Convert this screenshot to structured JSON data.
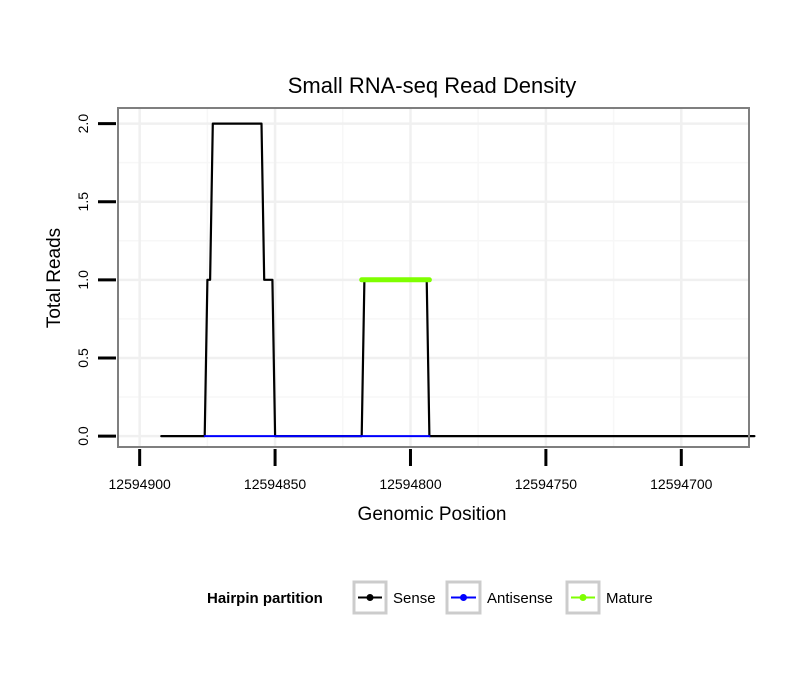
{
  "chart_data": {
    "type": "line",
    "title": "Small RNA-seq Read Density",
    "xlabel": "Genomic Position",
    "ylabel": "Total Reads",
    "xlim": [
      12594908,
      12594675
    ],
    "x_reversed": true,
    "ylim": [
      -0.07,
      2.1
    ],
    "xticks": [
      12594900,
      12594850,
      12594800,
      12594750,
      12594700
    ],
    "xtick_labels": [
      "12594900",
      "12594850",
      "12594800",
      "12594750",
      "12594700"
    ],
    "yticks": [
      0.0,
      0.5,
      1.0,
      1.5,
      2.0
    ],
    "ytick_labels": [
      "0.0",
      "0.5",
      "1.0",
      "1.5",
      "2.0"
    ],
    "grid": true,
    "legend": {
      "title": "Hairpin partition",
      "position": "bottom",
      "entries": [
        "Sense",
        "Antisense",
        "Mature"
      ]
    },
    "series": [
      {
        "name": "Sense",
        "color": "#000000",
        "x": [
          12594892,
          12594876,
          12594875,
          12594874,
          12594873,
          12594855,
          12594854,
          12594851,
          12594850,
          12594818,
          12594817,
          12594794,
          12594793,
          12594673
        ],
        "y": [
          0,
          0,
          1,
          1,
          2,
          2,
          1,
          1,
          0,
          0,
          1,
          1,
          0,
          0
        ]
      },
      {
        "name": "Antisense",
        "color": "#0000ff",
        "x": [
          12594876,
          12594850,
          12594818,
          12594793
        ],
        "y": [
          0,
          0,
          0,
          0
        ]
      },
      {
        "name": "Mature",
        "color": "#7fff00",
        "x": [
          12594818,
          12594793
        ],
        "y": [
          1,
          1
        ]
      }
    ]
  }
}
